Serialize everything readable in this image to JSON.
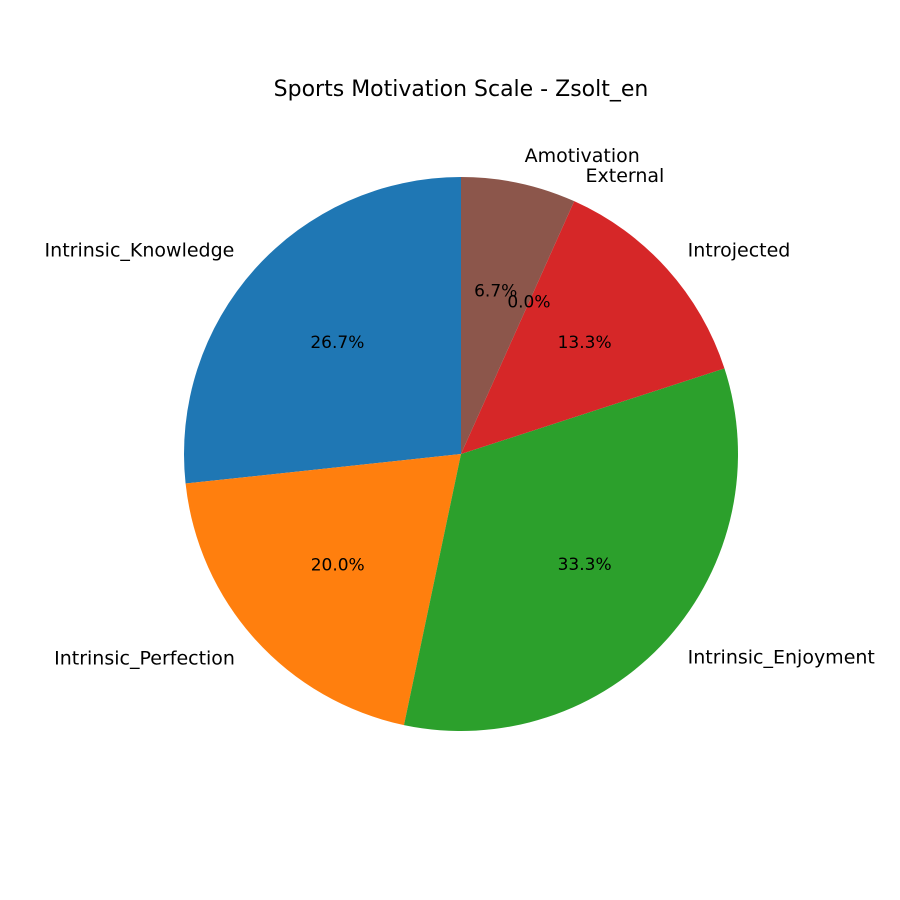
{
  "chart_data": {
    "type": "pie",
    "title": "Sports Motivation Scale - Zsolt_en",
    "slices": [
      {
        "label": "Intrinsic_Knowledge",
        "value": 26.7,
        "pct_label": "26.7%",
        "color": "#1f77b4"
      },
      {
        "label": "Intrinsic_Perfection",
        "value": 20.0,
        "pct_label": "20.0%",
        "color": "#ff7f0e"
      },
      {
        "label": "Intrinsic_Enjoyment",
        "value": 33.3,
        "pct_label": "33.3%",
        "color": "#2ca02c"
      },
      {
        "label": "Introjected",
        "value": 13.3,
        "pct_label": "13.3%",
        "color": "#d62728"
      },
      {
        "label": "External",
        "value": 0.0,
        "pct_label": "0.0%",
        "color": "#9467bd"
      },
      {
        "label": "Amotivation",
        "value": 6.7,
        "pct_label": "6.7%",
        "color": "#8c564b"
      }
    ],
    "start_angle_deg": 90,
    "direction": "counterclockwise"
  }
}
